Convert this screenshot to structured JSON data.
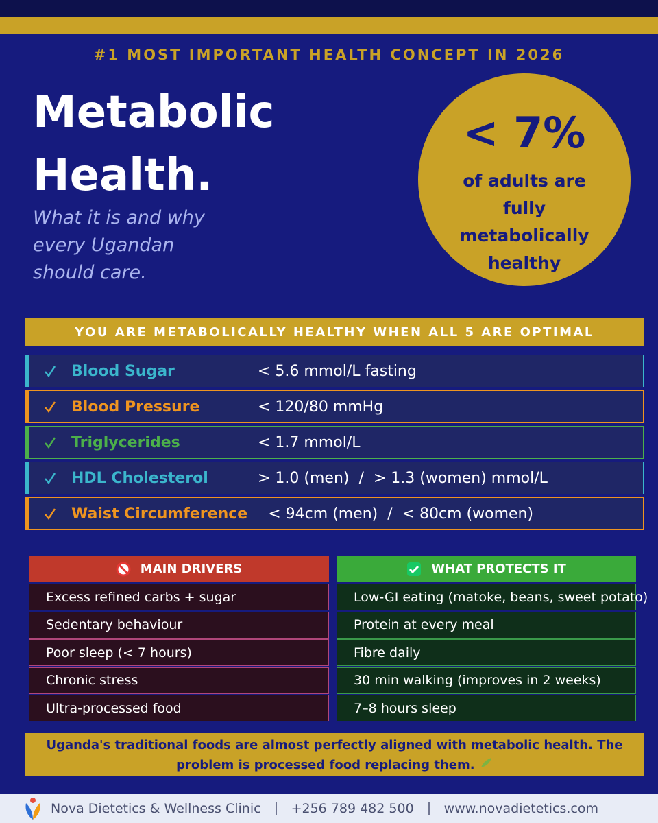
{
  "kicker": "#1 MOST IMPORTANT HEALTH CONCEPT IN 2026",
  "title_lines": [
    "Metabolic",
    "Health."
  ],
  "subtitle": "What it is and why every Ugandan should care.",
  "stat": {
    "value": "< 7%",
    "caption": "of adults are fully metabolically healthy"
  },
  "criteria": {
    "heading": "YOU ARE METABOLICALLY HEALTHY WHEN ALL 5 ARE OPTIMAL",
    "items": [
      {
        "name": "Blood Sugar",
        "target": "< 5.6 mmol/L fasting",
        "color": "#3bb6cc"
      },
      {
        "name": "Blood Pressure",
        "target": "< 120/80 mmHg",
        "color": "#ee9420"
      },
      {
        "name": "Triglycerides",
        "target": "< 1.7 mmol/L",
        "color": "#4cb04a"
      },
      {
        "name": "HDL Cholesterol",
        "target": "> 1.0 (men)  /  > 1.3 (women) mmol/L",
        "color": "#3bb6cc"
      },
      {
        "name": "Waist Circumference",
        "target": "< 94cm (men)  /  < 80cm (women)",
        "color": "#ee9420"
      }
    ]
  },
  "drivers": {
    "heading": "MAIN DRIVERS",
    "items": [
      "Excess refined carbs + sugar",
      "Sedentary behaviour",
      "Poor sleep (< 7 hours)",
      "Chronic stress",
      "Ultra-processed food"
    ]
  },
  "protects": {
    "heading": "WHAT PROTECTS IT",
    "items": [
      "Low-GI eating (matoke, beans, sweet potato)",
      "Protein at every meal",
      "Fibre daily",
      "30 min walking (improves in 2 weeks)",
      "7–8 hours sleep"
    ]
  },
  "note": "Uganda's traditional foods are almost perfectly aligned with metabolic health. The problem is processed food replacing them.",
  "footer": {
    "clinic": "Nova Dietetics & Wellness Clinic",
    "phone": "+256 789 482 500",
    "web": "www.novadietetics.com"
  }
}
